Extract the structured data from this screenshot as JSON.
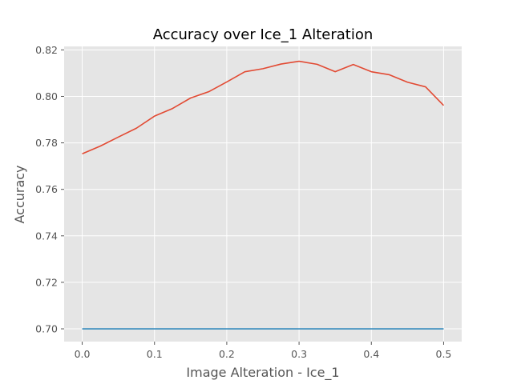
{
  "chart_data": {
    "type": "line",
    "title": "Accuracy over Ice_1 Alteration",
    "xlabel": "Image Alteration - Ice_1",
    "ylabel": "Accuracy",
    "xlim": [
      -0.025,
      0.525
    ],
    "ylim": [
      0.6945,
      0.8215
    ],
    "xticks": [
      0.0,
      0.1,
      0.2,
      0.3,
      0.4,
      0.5
    ],
    "xtick_labels": [
      "0.0",
      "0.1",
      "0.2",
      "0.3",
      "0.4",
      "0.5"
    ],
    "yticks": [
      0.7,
      0.72,
      0.74,
      0.76,
      0.78,
      0.8,
      0.82
    ],
    "ytick_labels": [
      "0.70",
      "0.72",
      "0.74",
      "0.76",
      "0.78",
      "0.80",
      "0.82"
    ],
    "grid": true,
    "legend": false,
    "background_color": "#e5e5e5",
    "grid_color": "#ffffff",
    "x": [
      0.0,
      0.025,
      0.05,
      0.075,
      0.1,
      0.125,
      0.15,
      0.175,
      0.2,
      0.225,
      0.25,
      0.275,
      0.3,
      0.325,
      0.35,
      0.375,
      0.4,
      0.425,
      0.45,
      0.475,
      0.5
    ],
    "series": [
      {
        "color": "#e24a33",
        "values": [
          0.7753,
          0.7786,
          0.7825,
          0.7863,
          0.7915,
          0.7948,
          0.7993,
          0.802,
          0.8062,
          0.8106,
          0.8119,
          0.8139,
          0.8151,
          0.8138,
          0.8106,
          0.8137,
          0.8106,
          0.8093,
          0.8061,
          0.8041,
          0.7961
        ]
      },
      {
        "color": "#348abd",
        "values": [
          0.7,
          0.7,
          0.7,
          0.7,
          0.7,
          0.7,
          0.7,
          0.7,
          0.7,
          0.7,
          0.7,
          0.7,
          0.7,
          0.7,
          0.7,
          0.7,
          0.7,
          0.7,
          0.7,
          0.7,
          0.7
        ]
      }
    ]
  }
}
